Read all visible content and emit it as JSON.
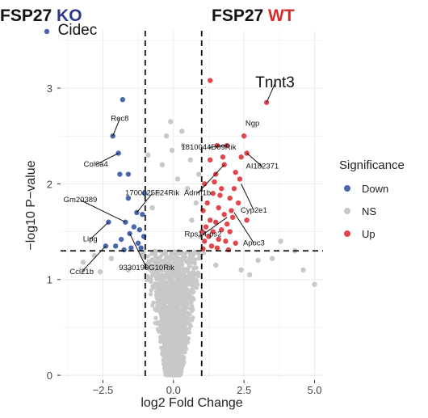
{
  "header": {
    "left_prefix": "FSP27",
    "left_suffix": "KO",
    "left_suffix_color": "#2d3a8c",
    "right_prefix": "FSP27",
    "right_suffix": "WT",
    "right_suffix_color": "#d42a2a"
  },
  "chart_data": {
    "type": "scatter",
    "title": "",
    "xlabel": "log2 Fold Change",
    "ylabel": "−log10  P−value",
    "xlim": [
      -4.0,
      5.3
    ],
    "ylim": [
      -0.05,
      3.6
    ],
    "xticks": [
      -2.5,
      0.0,
      2.5,
      5.0
    ],
    "xtick_labels": [
      "−2.5",
      "0.0",
      "2.5",
      "5.0"
    ],
    "yticks": [
      0,
      1,
      2,
      3
    ],
    "ytick_labels": [
      "0",
      "1",
      "2",
      "3"
    ],
    "grid": true,
    "thresholds": {
      "log2fc": [
        -1.0,
        1.0
      ],
      "neg_log10_p": 1.3
    },
    "colors": {
      "Down": "#4a66ad",
      "NS": "#c8c8c8",
      "Up": "#e0474c"
    },
    "legend": {
      "title": "Significance",
      "position": "right",
      "entries": [
        "Down",
        "NS",
        "Up"
      ]
    },
    "series": [
      {
        "name": "Down",
        "points": [
          [
            -1.8,
            2.88
          ],
          [
            -2.15,
            2.5
          ],
          [
            -1.95,
            2.32
          ],
          [
            -1.6,
            2.1
          ],
          [
            -1.7,
            1.6
          ],
          [
            -1.3,
            1.7
          ],
          [
            -1.1,
            1.68
          ],
          [
            -1.4,
            1.55
          ],
          [
            -1.2,
            1.52
          ],
          [
            -1.55,
            1.48
          ],
          [
            -1.05,
            1.45
          ],
          [
            -1.85,
            1.42
          ],
          [
            -1.25,
            1.38
          ],
          [
            -2.05,
            1.35
          ],
          [
            -1.5,
            1.33
          ],
          [
            -1.15,
            1.33
          ],
          [
            -1.75,
            1.31
          ],
          [
            -2.3,
            1.6
          ],
          [
            -2.4,
            1.35
          ],
          [
            -1.6,
            1.85
          ],
          [
            -1.9,
            2.1
          ],
          [
            -1.02,
            1.9
          ]
        ]
      },
      {
        "name": "Up",
        "points": [
          [
            3.3,
            2.85
          ],
          [
            1.3,
            3.08
          ],
          [
            2.5,
            2.5
          ],
          [
            1.9,
            2.4
          ],
          [
            2.6,
            2.32
          ],
          [
            2.4,
            2.28
          ],
          [
            1.55,
            2.4
          ],
          [
            1.3,
            2.25
          ],
          [
            1.8,
            2.2
          ],
          [
            1.5,
            2.1
          ],
          [
            2.2,
            2.12
          ],
          [
            1.1,
            2.0
          ],
          [
            1.7,
            1.95
          ],
          [
            2.15,
            1.95
          ],
          [
            1.4,
            1.9
          ],
          [
            2.0,
            1.85
          ],
          [
            1.2,
            1.8
          ],
          [
            2.3,
            1.8
          ],
          [
            1.6,
            1.75
          ],
          [
            1.05,
            1.72
          ],
          [
            1.8,
            1.68
          ],
          [
            2.1,
            1.65
          ],
          [
            1.3,
            1.62
          ],
          [
            1.5,
            1.6
          ],
          [
            1.9,
            1.58
          ],
          [
            2.6,
            1.62
          ],
          [
            1.15,
            1.55
          ],
          [
            1.7,
            1.52
          ],
          [
            1.4,
            1.5
          ],
          [
            2.0,
            1.5
          ],
          [
            1.25,
            1.45
          ],
          [
            1.6,
            1.42
          ],
          [
            1.1,
            1.4
          ],
          [
            1.85,
            1.4
          ],
          [
            2.2,
            1.38
          ],
          [
            1.35,
            1.35
          ],
          [
            1.55,
            1.33
          ],
          [
            1.05,
            1.32
          ],
          [
            1.95,
            1.31
          ],
          [
            2.05,
            1.72
          ],
          [
            1.65,
            1.88
          ],
          [
            1.45,
            2.02
          ],
          [
            2.35,
            2.05
          ],
          [
            1.75,
            2.28
          ],
          [
            1.02,
            1.5
          ]
        ]
      },
      {
        "name": "NS",
        "points": [
          [
            -0.1,
            2.65
          ],
          [
            -0.05,
            2.35
          ],
          [
            0.35,
            2.4
          ],
          [
            -0.4,
            2.2
          ],
          [
            0.15,
            2.05
          ],
          [
            -0.55,
            1.9
          ],
          [
            0.5,
            1.95
          ],
          [
            0.8,
            1.8
          ],
          [
            -0.75,
            1.75
          ],
          [
            0.65,
            1.62
          ],
          [
            3.8,
            1.4
          ],
          [
            4.3,
            1.3
          ],
          [
            5.0,
            0.95
          ],
          [
            4.6,
            1.1
          ],
          [
            3.0,
            1.2
          ],
          [
            3.5,
            1.22
          ],
          [
            -2.8,
            1.25
          ],
          [
            -3.2,
            1.18
          ],
          [
            -2.2,
            1.22
          ],
          [
            0.6,
            2.25
          ],
          [
            0.9,
            2.1
          ],
          [
            -0.9,
            2.3
          ],
          [
            0.3,
            2.55
          ],
          [
            -0.25,
            2.5
          ],
          [
            2.4,
            1.1
          ],
          [
            2.7,
            1.05
          ],
          [
            -2.6,
            1.08
          ],
          [
            1.5,
            1.15
          ],
          [
            -1.6,
            1.1
          ],
          [
            0.95,
            1.45
          ]
        ]
      }
    ],
    "annotations": [
      {
        "text": "Cidec",
        "x": -3.4,
        "y": 3.6,
        "large": true
      },
      {
        "text": "Tnnt3",
        "x": 3.6,
        "y": 3.05,
        "large": true,
        "target": [
          3.3,
          2.85
        ]
      },
      {
        "text": "Rec8",
        "x": -1.9,
        "y": 2.68,
        "target": [
          -2.15,
          2.5
        ]
      },
      {
        "text": "Ngp",
        "x": 2.8,
        "y": 2.63
      },
      {
        "text": "1810044D09Rik",
        "x": 1.25,
        "y": 2.38,
        "target": [
          1.9,
          2.4
        ]
      },
      {
        "text": "AI182371",
        "x": 3.15,
        "y": 2.18,
        "target": [
          2.6,
          2.32
        ]
      },
      {
        "text": "Col6a4",
        "x": -2.75,
        "y": 2.2,
        "target": [
          -1.95,
          2.32
        ]
      },
      {
        "text": "1700025F24Rik",
        "x": -0.75,
        "y": 1.9,
        "target": [
          -1.3,
          1.7
        ]
      },
      {
        "text": "Adrm1b",
        "x": 0.85,
        "y": 1.9,
        "target": [
          1.8,
          2.2
        ]
      },
      {
        "text": "Gm20389",
        "x": -3.3,
        "y": 1.83,
        "target": [
          -1.7,
          1.6
        ]
      },
      {
        "text": "Cyp2e1",
        "x": 2.85,
        "y": 1.72,
        "target": [
          2.4,
          2.0
        ]
      },
      {
        "text": "Lipg",
        "x": -2.95,
        "y": 1.42,
        "target": [
          -2.3,
          1.6
        ]
      },
      {
        "text": "Rps14-ps2",
        "x": 1.05,
        "y": 1.47,
        "target": [
          1.9,
          1.65
        ]
      },
      {
        "text": "Apoc3",
        "x": 2.85,
        "y": 1.38,
        "target": [
          2.15,
          1.7
        ]
      },
      {
        "text": "Ccl21b",
        "x": -3.25,
        "y": 1.08,
        "target": [
          -2.4,
          1.35
        ]
      },
      {
        "text": "9330199G10Rik",
        "x": -0.95,
        "y": 1.12,
        "target": [
          -1.55,
          1.48
        ]
      }
    ]
  }
}
